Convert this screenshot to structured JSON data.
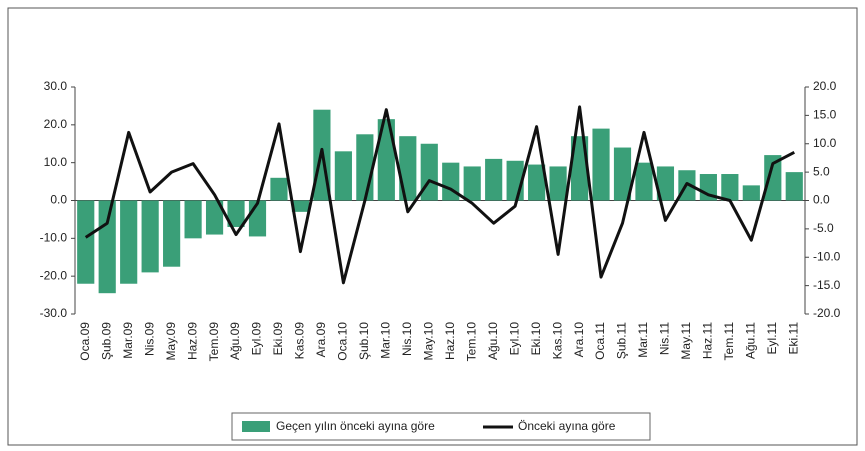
{
  "chart_data": {
    "type": "bar",
    "categories": [
      "Oca.09",
      "Şub.09",
      "Mar.09",
      "Nis.09",
      "May.09",
      "Haz.09",
      "Tem.09",
      "Ağu.09",
      "Eyl.09",
      "Eki.09",
      "Kas.09",
      "Ara.09",
      "Oca.10",
      "Şub.10",
      "Mar.10",
      "Nis.10",
      "May.10",
      "Haz.10",
      "Tem.10",
      "Ağu.10",
      "Eyl.10",
      "Eki.10",
      "Kas.10",
      "Ara.10",
      "Oca.11",
      "Şub.11",
      "Mar.11",
      "Nis.11",
      "May.11",
      "Haz.11",
      "Tem.11",
      "Ağu.11",
      "Eyl.11",
      "Eki.11"
    ],
    "series": [
      {
        "name": "Geçen yılın önceki ayına göre",
        "type": "bar",
        "color": "#3a9f78",
        "values": [
          -22,
          -24.5,
          -22,
          -19,
          -17.5,
          -10,
          -9,
          -7,
          -9.5,
          6,
          -3,
          24,
          13,
          17.5,
          21.5,
          17,
          15,
          10,
          9,
          11,
          10.5,
          9.5,
          9,
          17,
          19,
          14,
          10,
          9,
          8,
          7,
          7,
          4,
          12,
          7.5
        ]
      },
      {
        "name": "Önceki ayına göre",
        "type": "line",
        "color": "#111111",
        "axis": "y2",
        "values": [
          -6.5,
          -4,
          12,
          1.5,
          5,
          6.5,
          1,
          -6,
          -0.5,
          13.5,
          -9,
          9,
          -14.5,
          0,
          16,
          -2,
          3.5,
          2,
          -0.5,
          -4,
          -1,
          13,
          -9.5,
          16.5,
          -13.5,
          -4,
          12,
          -3.5,
          3,
          1,
          0,
          -7,
          6.5,
          8.5
        ]
      }
    ],
    "ylim": [
      -30,
      30
    ],
    "yticks": [
      {
        "value": -30,
        "label": "-30.0"
      },
      {
        "value": -20,
        "label": "-20.0"
      },
      {
        "value": -10,
        "label": "-10.0"
      },
      {
        "value": 0,
        "label": "0.0"
      },
      {
        "value": 10,
        "label": "10.0"
      },
      {
        "value": 20,
        "label": "20.0"
      },
      {
        "value": 30,
        "label": "30.0"
      }
    ],
    "y2lim": [
      -20,
      20
    ],
    "y2ticks": [
      {
        "value": -20,
        "label": "-20.0"
      },
      {
        "value": -15,
        "label": "-15.0"
      },
      {
        "value": -10,
        "label": "-10.0"
      },
      {
        "value": -5,
        "label": "-5.0"
      },
      {
        "value": 0,
        "label": "0.0"
      },
      {
        "value": 5,
        "label": "5.0"
      },
      {
        "value": 10,
        "label": "10.0"
      },
      {
        "value": 15,
        "label": "15.0"
      },
      {
        "value": 20,
        "label": "20.0"
      }
    ],
    "legend": "bottom"
  }
}
